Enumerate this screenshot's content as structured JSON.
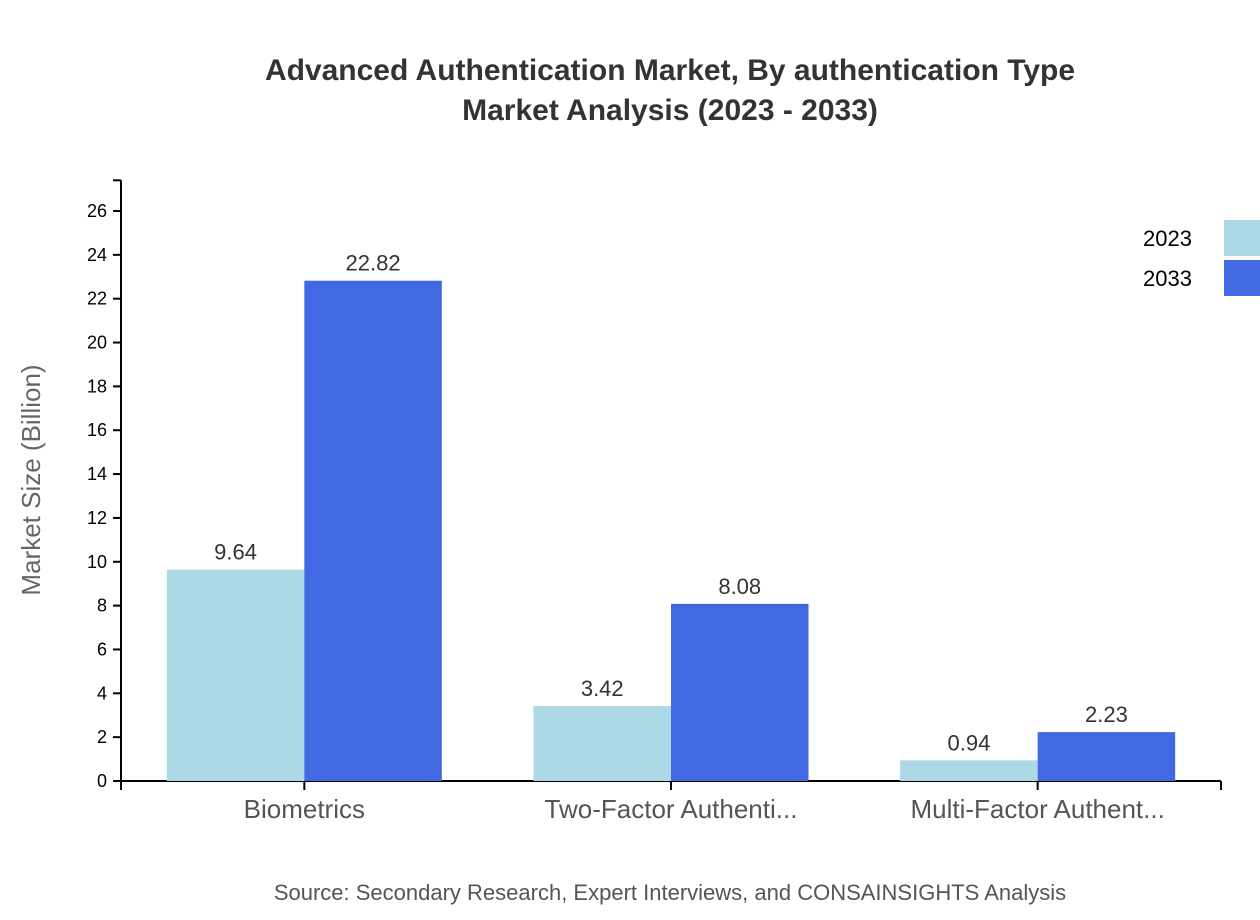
{
  "chart_data": {
    "type": "bar",
    "title": [
      "Advanced Authentication Market, By authentication Type",
      "Market Analysis (2023 - 2033)"
    ],
    "xlabel": "",
    "ylabel": "Market Size (Billion)",
    "ylim": [
      0,
      27.4
    ],
    "yticks": [
      0,
      2,
      4,
      6,
      8,
      10,
      12,
      14,
      16,
      18,
      20,
      22,
      24,
      26
    ],
    "categories": [
      "Biometrics",
      "Two-Factor Authenti...",
      "Multi-Factor Authent..."
    ],
    "series": [
      {
        "name": "2023",
        "color": "#add8e6",
        "values": [
          9.64,
          3.42,
          0.94
        ]
      },
      {
        "name": "2033",
        "color": "#4169e1",
        "values": [
          22.82,
          8.08,
          2.23
        ]
      }
    ],
    "legend": "top-right",
    "grid": false,
    "source": "Source: Secondary Research, Expert Interviews, and CONSAINSIGHTS Analysis"
  }
}
